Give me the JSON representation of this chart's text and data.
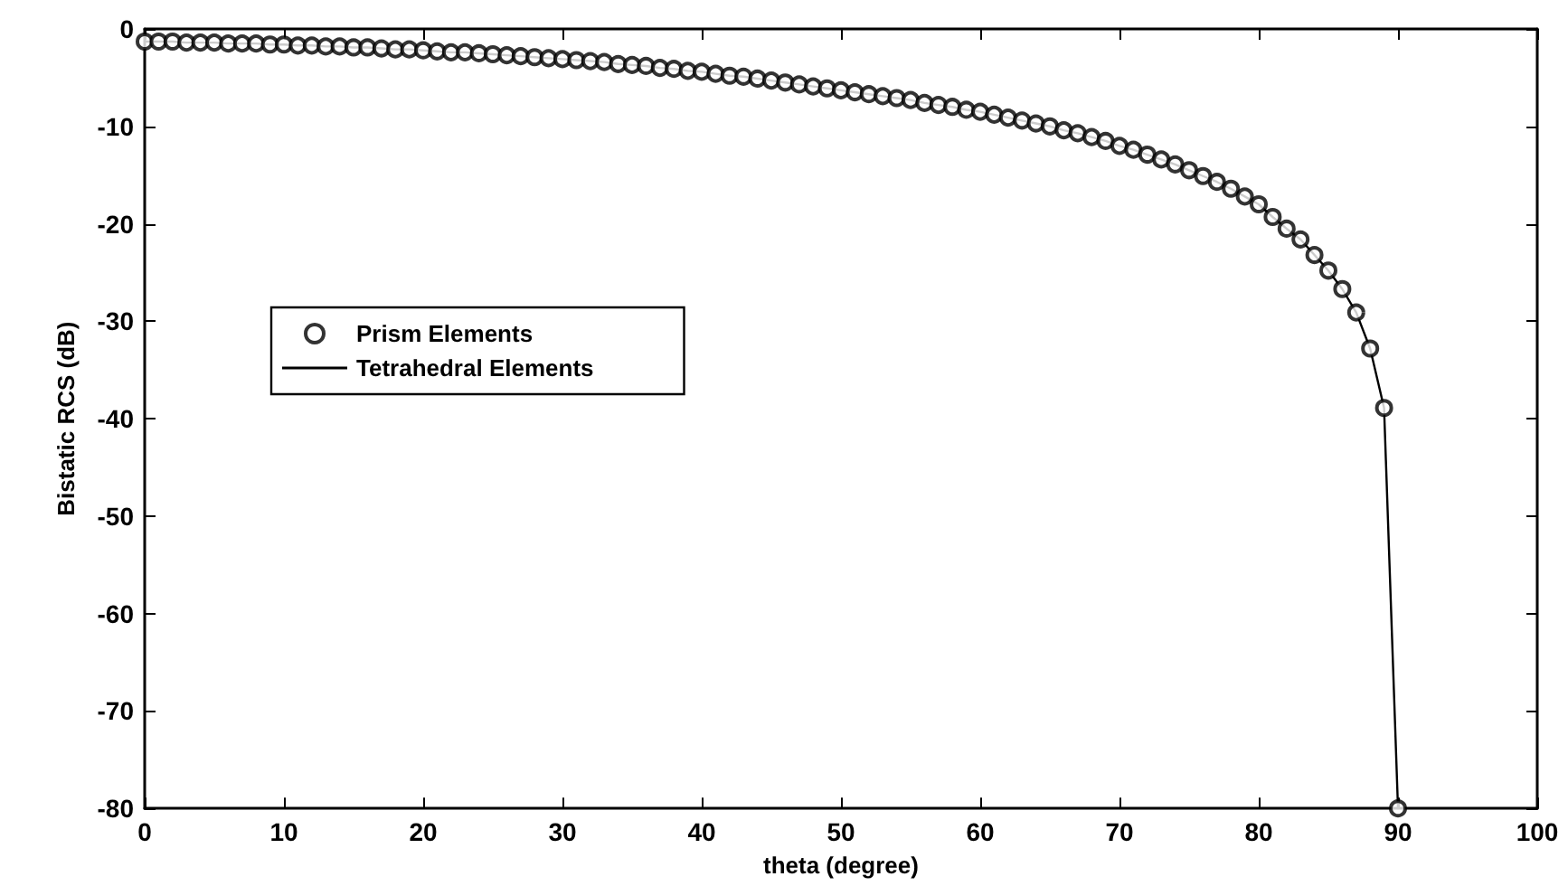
{
  "chart_data": {
    "type": "line",
    "xlabel": "theta (degree)",
    "ylabel": "Bistatic RCS (dB)",
    "xlim": [
      0,
      100
    ],
    "xticks": [
      0,
      10,
      20,
      30,
      40,
      50,
      60,
      70,
      80,
      90,
      100
    ],
    "ylim": [
      -80,
      0
    ],
    "yticks": [
      -80,
      -70,
      -60,
      -50,
      -40,
      -30,
      -20,
      -10,
      0
    ],
    "grid": false,
    "legend": "left",
    "x": [
      0,
      1,
      2,
      3,
      4,
      5,
      6,
      7,
      8,
      9,
      10,
      11,
      12,
      13,
      14,
      15,
      16,
      17,
      18,
      19,
      20,
      21,
      22,
      23,
      24,
      25,
      26,
      27,
      28,
      29,
      30,
      31,
      32,
      33,
      34,
      35,
      36,
      37,
      38,
      39,
      40,
      41,
      42,
      43,
      44,
      45,
      46,
      47,
      48,
      49,
      50,
      51,
      52,
      53,
      54,
      55,
      56,
      57,
      58,
      59,
      60,
      61,
      62,
      63,
      64,
      65,
      66,
      67,
      68,
      69,
      70,
      71,
      72,
      73,
      74,
      75,
      76,
      77,
      78,
      79,
      80,
      81,
      82,
      83,
      84,
      85,
      86,
      87,
      88,
      89,
      90
    ],
    "series": [
      {
        "name": "Prism Elements",
        "type": "scatter",
        "marker": "circle",
        "color": "#000000",
        "values": [
          -1.3,
          -1.3,
          -1.3,
          -1.4,
          -1.4,
          -1.4,
          -1.5,
          -1.5,
          -1.5,
          -1.6,
          -1.6,
          -1.7,
          -1.7,
          -1.8,
          -1.8,
          -1.9,
          -1.9,
          -2.0,
          -2.1,
          -2.1,
          -2.2,
          -2.3,
          -2.4,
          -2.4,
          -2.5,
          -2.6,
          -2.7,
          -2.8,
          -2.9,
          -3.0,
          -3.1,
          -3.2,
          -3.3,
          -3.4,
          -3.6,
          -3.7,
          -3.8,
          -4.0,
          -4.1,
          -4.3,
          -4.4,
          -4.6,
          -4.8,
          -4.9,
          -5.1,
          -5.3,
          -5.5,
          -5.7,
          -5.9,
          -6.1,
          -6.3,
          -6.5,
          -6.7,
          -6.9,
          -7.1,
          -7.3,
          -7.6,
          -7.8,
          -8.0,
          -8.3,
          -8.5,
          -8.8,
          -9.1,
          -9.4,
          -9.7,
          -10.0,
          -10.4,
          -10.7,
          -11.1,
          -11.5,
          -12.0,
          -12.4,
          -12.9,
          -13.4,
          -13.9,
          -14.5,
          -15.1,
          -15.7,
          -16.4,
          -17.2,
          -18.0,
          -19.3,
          -20.5,
          -21.6,
          -23.2,
          -24.8,
          -26.7,
          -29.1,
          -32.8,
          -38.9,
          -80
        ]
      },
      {
        "name": "Tetrahedral Elements",
        "marker": "none",
        "line_style": "solid",
        "color": "#000000",
        "values": [
          -1.3,
          -1.3,
          -1.3,
          -1.4,
          -1.4,
          -1.4,
          -1.5,
          -1.5,
          -1.5,
          -1.6,
          -1.6,
          -1.7,
          -1.7,
          -1.8,
          -1.8,
          -1.9,
          -1.9,
          -2.0,
          -2.1,
          -2.1,
          -2.2,
          -2.3,
          -2.4,
          -2.4,
          -2.5,
          -2.6,
          -2.7,
          -2.8,
          -2.9,
          -3.0,
          -3.1,
          -3.2,
          -3.3,
          -3.4,
          -3.6,
          -3.7,
          -3.8,
          -4.0,
          -4.1,
          -4.3,
          -4.4,
          -4.6,
          -4.8,
          -4.9,
          -5.1,
          -5.3,
          -5.5,
          -5.7,
          -5.9,
          -6.1,
          -6.3,
          -6.5,
          -6.7,
          -6.9,
          -7.1,
          -7.3,
          -7.6,
          -7.8,
          -8.0,
          -8.3,
          -8.5,
          -8.8,
          -9.1,
          -9.4,
          -9.7,
          -10.0,
          -10.4,
          -10.7,
          -11.1,
          -11.5,
          -12.0,
          -12.4,
          -12.9,
          -13.4,
          -13.9,
          -14.5,
          -15.1,
          -15.7,
          -16.4,
          -17.2,
          -18.0,
          -19.3,
          -20.5,
          -21.6,
          -23.2,
          -24.8,
          -26.7,
          -29.1,
          -32.8,
          -38.9,
          -80
        ]
      }
    ]
  }
}
